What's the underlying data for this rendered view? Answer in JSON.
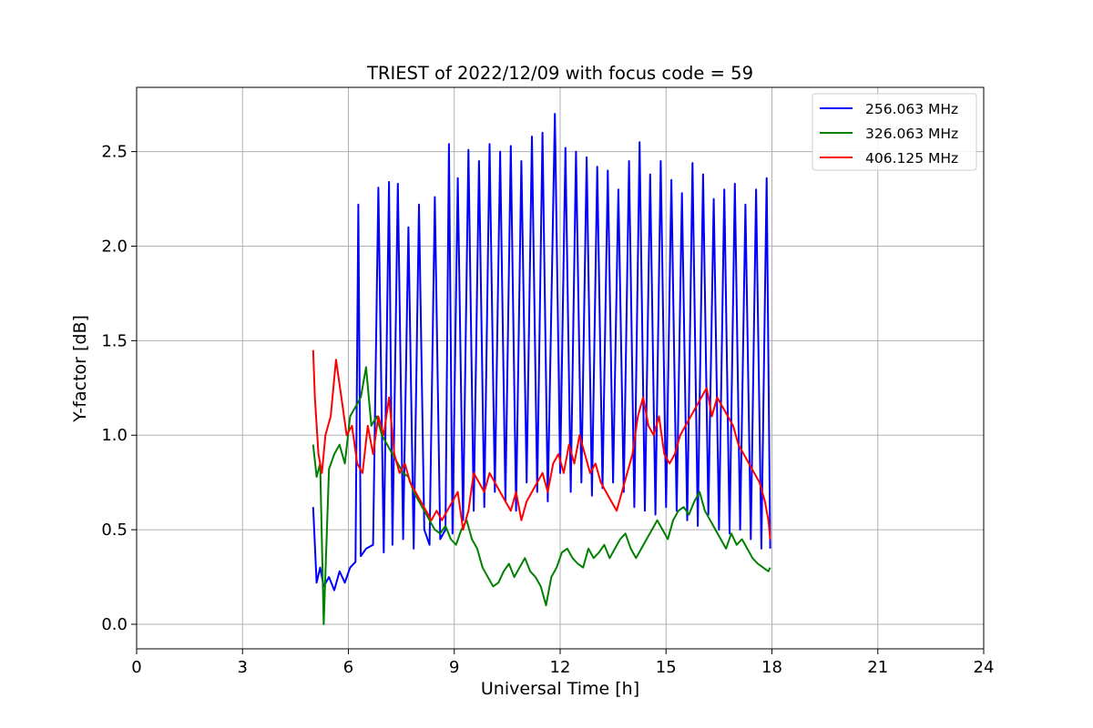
{
  "chart_data": {
    "type": "line",
    "title": "TRIEST of 2022/12/09 with focus code = 59",
    "xlabel": "Universal Time [h]",
    "ylabel": "Y-factor [dB]",
    "xlim": [
      0,
      24
    ],
    "ylim": [
      -0.13,
      2.84
    ],
    "xticks": [
      0,
      3,
      6,
      9,
      12,
      15,
      18,
      21,
      24
    ],
    "yticks": [
      0.0,
      0.5,
      1.0,
      1.5,
      2.0,
      2.5
    ],
    "ytick_labels": [
      "0.0",
      "0.5",
      "1.0",
      "1.5",
      "2.0",
      "2.5"
    ],
    "grid": true,
    "legend_position": "top-right",
    "series": [
      {
        "name": "256.063 MHz",
        "color": "#0000ff",
        "x": [
          5.0,
          5.1,
          5.2,
          5.3,
          5.45,
          5.6,
          5.75,
          5.9,
          6.05,
          6.2,
          6.28,
          6.35,
          6.5,
          6.7,
          6.85,
          7.0,
          7.15,
          7.25,
          7.4,
          7.55,
          7.7,
          7.85,
          8.0,
          8.15,
          8.3,
          8.45,
          8.6,
          8.75,
          8.85,
          8.95,
          9.1,
          9.25,
          9.4,
          9.55,
          9.7,
          9.85,
          10.0,
          10.15,
          10.3,
          10.45,
          10.6,
          10.75,
          10.9,
          11.05,
          11.2,
          11.35,
          11.5,
          11.65,
          11.85,
          12.0,
          12.15,
          12.3,
          12.45,
          12.6,
          12.75,
          12.9,
          13.05,
          13.2,
          13.35,
          13.5,
          13.65,
          13.8,
          13.95,
          14.1,
          14.25,
          14.4,
          14.55,
          14.7,
          14.85,
          15.0,
          15.15,
          15.3,
          15.45,
          15.6,
          15.75,
          15.9,
          16.05,
          16.2,
          16.35,
          16.5,
          16.65,
          16.8,
          16.95,
          17.1,
          17.25,
          17.4,
          17.55,
          17.7,
          17.85,
          17.95
        ],
        "y": [
          0.62,
          0.22,
          0.3,
          0.2,
          0.25,
          0.18,
          0.28,
          0.22,
          0.3,
          0.33,
          2.22,
          0.36,
          0.4,
          0.42,
          2.31,
          0.38,
          2.34,
          0.42,
          2.33,
          0.45,
          2.1,
          0.4,
          2.22,
          0.5,
          0.42,
          2.26,
          0.45,
          0.5,
          2.54,
          0.48,
          2.36,
          0.55,
          2.51,
          0.6,
          2.45,
          0.62,
          2.54,
          0.7,
          2.5,
          0.65,
          2.53,
          0.6,
          2.45,
          0.75,
          2.58,
          0.7,
          2.6,
          0.65,
          2.7,
          0.8,
          2.52,
          0.7,
          2.5,
          0.75,
          2.47,
          0.68,
          2.42,
          0.72,
          2.4,
          0.75,
          2.3,
          0.7,
          2.45,
          0.62,
          2.55,
          0.6,
          2.38,
          0.58,
          2.45,
          0.62,
          2.35,
          0.6,
          2.28,
          0.55,
          2.44,
          0.52,
          2.38,
          0.58,
          2.25,
          0.5,
          2.3,
          0.48,
          2.33,
          0.5,
          2.22,
          0.45,
          2.3,
          0.4,
          2.36,
          0.4
        ]
      },
      {
        "name": "326.063 MHz",
        "color": "#008000",
        "x": [
          5.0,
          5.1,
          5.2,
          5.3,
          5.45,
          5.6,
          5.75,
          5.9,
          6.05,
          6.2,
          6.35,
          6.5,
          6.65,
          6.8,
          6.95,
          7.1,
          7.25,
          7.4,
          7.55,
          7.7,
          7.85,
          8.0,
          8.15,
          8.3,
          8.45,
          8.6,
          8.75,
          8.9,
          9.05,
          9.2,
          9.35,
          9.5,
          9.65,
          9.8,
          9.95,
          10.1,
          10.25,
          10.4,
          10.55,
          10.7,
          10.85,
          11.0,
          11.15,
          11.3,
          11.45,
          11.6,
          11.75,
          11.9,
          12.05,
          12.2,
          12.35,
          12.5,
          12.65,
          12.8,
          12.95,
          13.1,
          13.25,
          13.4,
          13.55,
          13.7,
          13.85,
          14.0,
          14.15,
          14.3,
          14.45,
          14.6,
          14.75,
          14.9,
          15.05,
          15.2,
          15.35,
          15.5,
          15.65,
          15.8,
          15.95,
          16.1,
          16.25,
          16.4,
          16.55,
          16.7,
          16.85,
          17.0,
          17.15,
          17.3,
          17.45,
          17.6,
          17.75,
          17.9,
          17.95
        ],
        "y": [
          0.95,
          0.78,
          0.85,
          0.0,
          0.82,
          0.9,
          0.95,
          0.85,
          1.1,
          1.15,
          1.2,
          1.36,
          1.05,
          1.1,
          1.0,
          0.95,
          0.9,
          0.85,
          0.8,
          0.78,
          0.7,
          0.65,
          0.6,
          0.55,
          0.5,
          0.48,
          0.52,
          0.45,
          0.42,
          0.5,
          0.55,
          0.45,
          0.4,
          0.3,
          0.25,
          0.2,
          0.22,
          0.28,
          0.32,
          0.25,
          0.3,
          0.35,
          0.28,
          0.25,
          0.2,
          0.1,
          0.25,
          0.3,
          0.38,
          0.4,
          0.35,
          0.32,
          0.3,
          0.4,
          0.35,
          0.38,
          0.42,
          0.35,
          0.4,
          0.45,
          0.48,
          0.4,
          0.35,
          0.4,
          0.45,
          0.5,
          0.55,
          0.5,
          0.45,
          0.55,
          0.6,
          0.62,
          0.58,
          0.65,
          0.7,
          0.6,
          0.55,
          0.5,
          0.45,
          0.4,
          0.48,
          0.42,
          0.45,
          0.4,
          0.35,
          0.32,
          0.3,
          0.28,
          0.3
        ]
      },
      {
        "name": "406.125 MHz",
        "color": "#ff0000",
        "x": [
          5.0,
          5.05,
          5.15,
          5.25,
          5.35,
          5.5,
          5.65,
          5.8,
          5.95,
          6.1,
          6.25,
          6.4,
          6.55,
          6.7,
          6.85,
          7.0,
          7.15,
          7.3,
          7.45,
          7.6,
          7.75,
          7.9,
          8.05,
          8.2,
          8.35,
          8.5,
          8.65,
          8.8,
          8.95,
          9.1,
          9.25,
          9.4,
          9.55,
          9.7,
          9.85,
          10.0,
          10.15,
          10.3,
          10.45,
          10.6,
          10.75,
          10.9,
          11.05,
          11.2,
          11.35,
          11.5,
          11.65,
          11.8,
          11.95,
          12.1,
          12.25,
          12.4,
          12.55,
          12.7,
          12.85,
          13.0,
          13.15,
          13.3,
          13.45,
          13.6,
          13.75,
          13.9,
          14.05,
          14.2,
          14.35,
          14.5,
          14.65,
          14.8,
          14.95,
          15.1,
          15.25,
          15.4,
          15.55,
          15.7,
          15.85,
          16.0,
          16.15,
          16.3,
          16.45,
          16.6,
          16.75,
          16.9,
          17.05,
          17.2,
          17.35,
          17.5,
          17.65,
          17.8,
          17.9,
          17.95
        ],
        "y": [
          1.45,
          1.2,
          0.9,
          0.8,
          1.0,
          1.1,
          1.4,
          1.2,
          1.0,
          1.05,
          0.85,
          0.8,
          1.05,
          0.9,
          1.1,
          1.0,
          1.2,
          0.9,
          0.8,
          0.85,
          0.75,
          0.7,
          0.65,
          0.6,
          0.55,
          0.6,
          0.55,
          0.6,
          0.65,
          0.7,
          0.5,
          0.6,
          0.8,
          0.75,
          0.7,
          0.8,
          0.75,
          0.7,
          0.65,
          0.6,
          0.7,
          0.55,
          0.65,
          0.7,
          0.75,
          0.8,
          0.7,
          0.85,
          0.9,
          0.8,
          0.95,
          0.85,
          1.0,
          0.9,
          0.8,
          0.85,
          0.75,
          0.7,
          0.65,
          0.6,
          0.7,
          0.8,
          0.9,
          1.1,
          1.2,
          1.05,
          1.0,
          1.1,
          0.9,
          0.85,
          0.9,
          1.0,
          1.05,
          1.1,
          1.15,
          1.2,
          1.25,
          1.1,
          1.2,
          1.15,
          1.1,
          1.05,
          0.95,
          0.9,
          0.85,
          0.8,
          0.75,
          0.65,
          0.55,
          0.45
        ]
      }
    ]
  }
}
